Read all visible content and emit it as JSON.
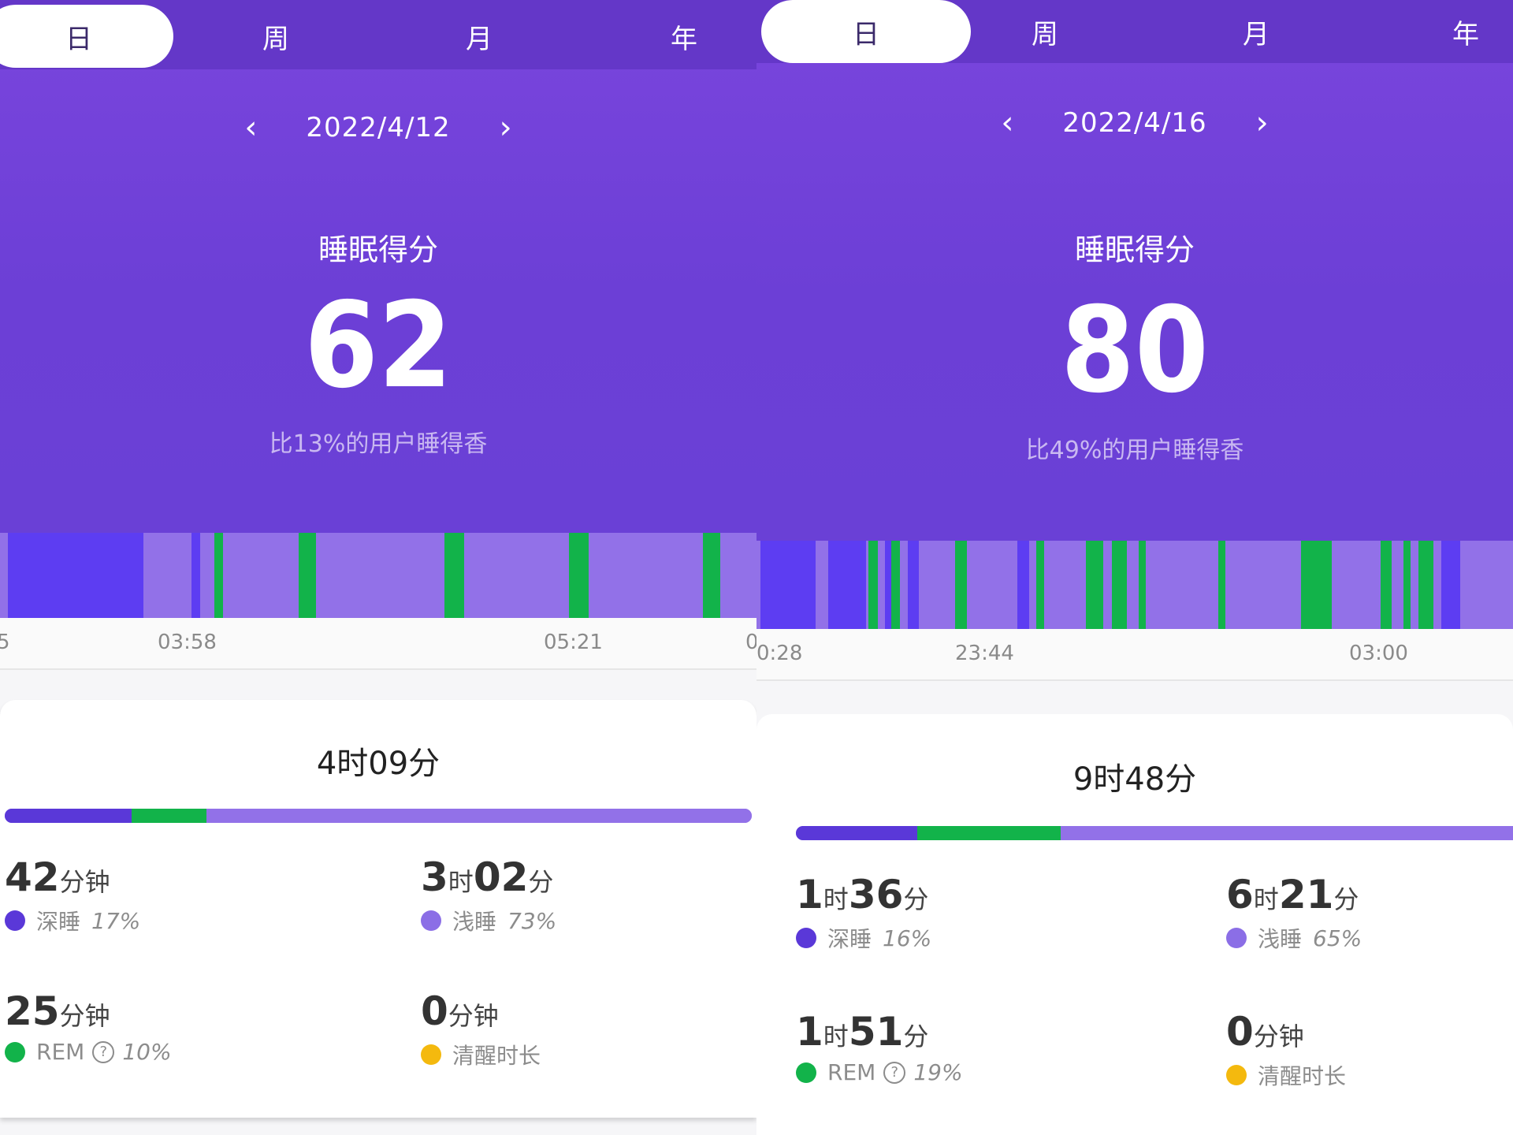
{
  "colors": {
    "deep": "#5d3df2",
    "light": "#9271e8",
    "rem": "#12b34a",
    "awake": "#f4b90e",
    "deep_dot": "#5a38d8",
    "light_dot": "#8b6ee6"
  },
  "panels": [
    {
      "tabs": [
        "日",
        "周",
        "月",
        "年"
      ],
      "date": "2022/4/12",
      "score_title": "睡眠得分",
      "score": "62",
      "score_sub": "比13%的用户睡得香",
      "ticks": [
        "5",
        "03:58",
        "05:21",
        "0"
      ],
      "timeline": {
        "deep": [
          [
            0.01,
            0.19
          ],
          [
            0.253,
            0.265
          ]
        ],
        "rem": [
          [
            0.283,
            0.295
          ],
          [
            0.395,
            0.418
          ],
          [
            0.587,
            0.614
          ],
          [
            0.752,
            0.778
          ],
          [
            0.929,
            0.952
          ]
        ]
      },
      "total": "4时09分",
      "bar": {
        "deep": 0.17,
        "rem": 0.1,
        "light": 0.73
      },
      "stats": {
        "deep": {
          "num1": "42",
          "unit1": "分钟",
          "num2": "",
          "unit2": "",
          "label": "深睡",
          "pct": "17%"
        },
        "light": {
          "num1": "3",
          "unit1": "时",
          "num2": "02",
          "unit2": "分",
          "label": "浅睡",
          "pct": "73%"
        },
        "rem": {
          "num1": "25",
          "unit1": "分钟",
          "num2": "",
          "unit2": "",
          "label": "REM",
          "pct": "10%"
        },
        "awake": {
          "num1": "0",
          "unit1": "分钟",
          "num2": "",
          "unit2": "",
          "label": "清醒时长",
          "pct": ""
        }
      }
    },
    {
      "tabs": [
        "日",
        "周",
        "月",
        "年"
      ],
      "date": "2022/4/16",
      "score_title": "睡眠得分",
      "score": "80",
      "score_sub": "比49%的用户睡得香",
      "ticks": [
        "0:28",
        "23:44",
        "03:00"
      ],
      "timeline": {
        "deep": [
          [
            0.005,
            0.078
          ],
          [
            0.095,
            0.145
          ],
          [
            0.17,
            0.18
          ],
          [
            0.2,
            0.215
          ],
          [
            0.345,
            0.36
          ],
          [
            0.905,
            0.93
          ]
        ],
        "rem": [
          [
            0.148,
            0.16
          ],
          [
            0.178,
            0.19
          ],
          [
            0.262,
            0.278
          ],
          [
            0.37,
            0.38
          ],
          [
            0.435,
            0.458
          ],
          [
            0.47,
            0.49
          ],
          [
            0.505,
            0.515
          ],
          [
            0.61,
            0.62
          ],
          [
            0.72,
            0.76
          ],
          [
            0.825,
            0.84
          ],
          [
            0.855,
            0.865
          ],
          [
            0.875,
            0.895
          ]
        ]
      },
      "total": "9时48分",
      "bar": {
        "deep": 0.16,
        "rem": 0.19,
        "light": 0.65
      },
      "stats": {
        "deep": {
          "num1": "1",
          "unit1": "时",
          "num2": "36",
          "unit2": "分",
          "label": "深睡",
          "pct": "16%"
        },
        "light": {
          "num1": "6",
          "unit1": "时",
          "num2": "21",
          "unit2": "分",
          "label": "浅睡",
          "pct": "65%"
        },
        "rem": {
          "num1": "1",
          "unit1": "时",
          "num2": "51",
          "unit2": "分",
          "label": "REM",
          "pct": "19%"
        },
        "awake": {
          "num1": "0",
          "unit1": "分钟",
          "num2": "",
          "unit2": "",
          "label": "清醒时长",
          "pct": ""
        }
      }
    }
  ]
}
